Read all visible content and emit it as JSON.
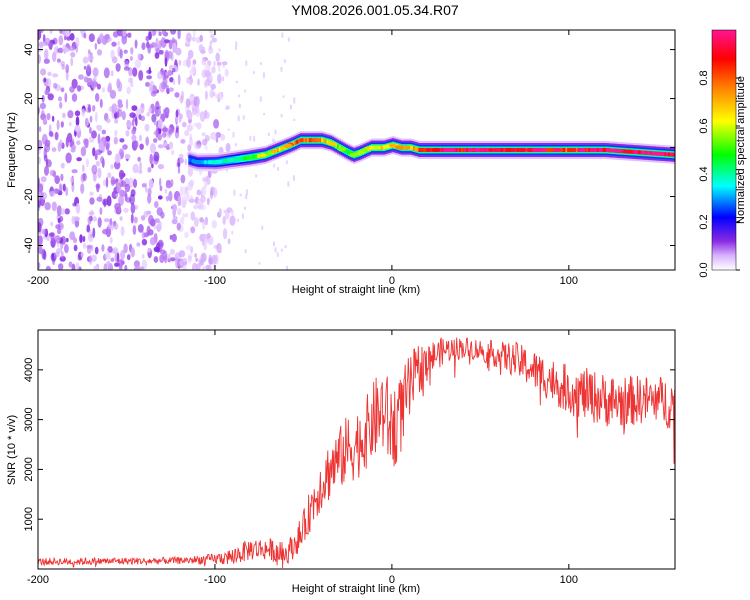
{
  "title": "YM08.2026.001.05.34.R07",
  "chart_data": [
    {
      "type": "heatmap",
      "name": "spectrogram",
      "xlabel": "Height of straight line (km)",
      "ylabel": "Frequency (Hz)",
      "xlim": [
        -200,
        160
      ],
      "ylim": [
        -50,
        48
      ],
      "xticks": [
        -200,
        -100,
        0,
        100
      ],
      "yticks": [
        -40,
        -20,
        0,
        20,
        40
      ],
      "colorbar": {
        "label": "Normalized spectral amplitude",
        "range": [
          0,
          1
        ],
        "ticks": [
          "0.0",
          "0.2",
          "0.4",
          "0.6",
          "0.8"
        ],
        "colors": [
          "#ffffff",
          "#8a2be2",
          "#0000ff",
          "#00ffff",
          "#00ff00",
          "#ffff00",
          "#ff8000",
          "#ff0000",
          "#ff1493"
        ]
      },
      "ridge": {
        "x": [
          -115,
          -110,
          -100,
          -90,
          -80,
          -72,
          -65,
          -58,
          -52,
          -45,
          -40,
          -35,
          -30,
          -25,
          -22,
          -18,
          -12,
          -5,
          0,
          5,
          10,
          15,
          20,
          40,
          60,
          80,
          100,
          120,
          140,
          160
        ],
        "y": [
          -5,
          -6,
          -6,
          -5,
          -4,
          -3,
          -1,
          1,
          3,
          3,
          3,
          2,
          0,
          -2,
          -3,
          -2,
          0,
          0,
          1,
          0,
          0,
          -1,
          -1,
          -1,
          -1,
          -1,
          -1,
          -1,
          -2,
          -3
        ],
        "amplitude": [
          0.3,
          0.3,
          0.35,
          0.4,
          0.5,
          0.6,
          0.7,
          0.75,
          0.85,
          0.8,
          0.7,
          0.6,
          0.55,
          0.5,
          0.5,
          0.55,
          0.6,
          0.65,
          0.7,
          0.7,
          0.65,
          0.8,
          0.9,
          0.95,
          0.9,
          0.95,
          0.85,
          0.95,
          1.0,
          1.0
        ]
      },
      "noise_region_x": [
        -200,
        -100
      ]
    },
    {
      "type": "line",
      "name": "snr",
      "xlabel": "Height of straight line (km)",
      "ylabel": "SNR (10 * v/v)",
      "xlim": [
        -200,
        160
      ],
      "ylim": [
        0,
        4800
      ],
      "xticks": [
        -200,
        -100,
        0,
        100
      ],
      "yticks": [
        1000,
        2000,
        3000,
        4000
      ],
      "color": "#ee3333",
      "series": [
        {
          "name": "SNR",
          "x": [
            -200,
            -180,
            -160,
            -140,
            -120,
            -100,
            -90,
            -80,
            -70,
            -60,
            -55,
            -50,
            -45,
            -40,
            -35,
            -30,
            -25,
            -20,
            -15,
            -10,
            -5,
            0,
            5,
            10,
            15,
            20,
            30,
            40,
            50,
            60,
            70,
            80,
            90,
            100,
            110,
            120,
            130,
            140,
            150,
            160
          ],
          "y": [
            150,
            150,
            160,
            160,
            170,
            200,
            250,
            400,
            400,
            300,
            500,
            800,
            1300,
            1700,
            2000,
            2200,
            2400,
            2500,
            2700,
            3000,
            3200,
            2800,
            3100,
            3600,
            4000,
            4200,
            4400,
            4450,
            4400,
            4300,
            4200,
            4000,
            3800,
            3600,
            3500,
            3400,
            3350,
            3400,
            3400,
            3300
          ],
          "noise_amplitude": [
            80,
            80,
            80,
            80,
            80,
            120,
            200,
            250,
            250,
            250,
            300,
            400,
            500,
            600,
            700,
            700,
            800,
            800,
            800,
            900,
            1000,
            1000,
            900,
            800,
            600,
            400,
            300,
            250,
            250,
            300,
            400,
            450,
            500,
            550,
            600,
            600,
            600,
            550,
            550,
            600
          ]
        }
      ]
    }
  ]
}
